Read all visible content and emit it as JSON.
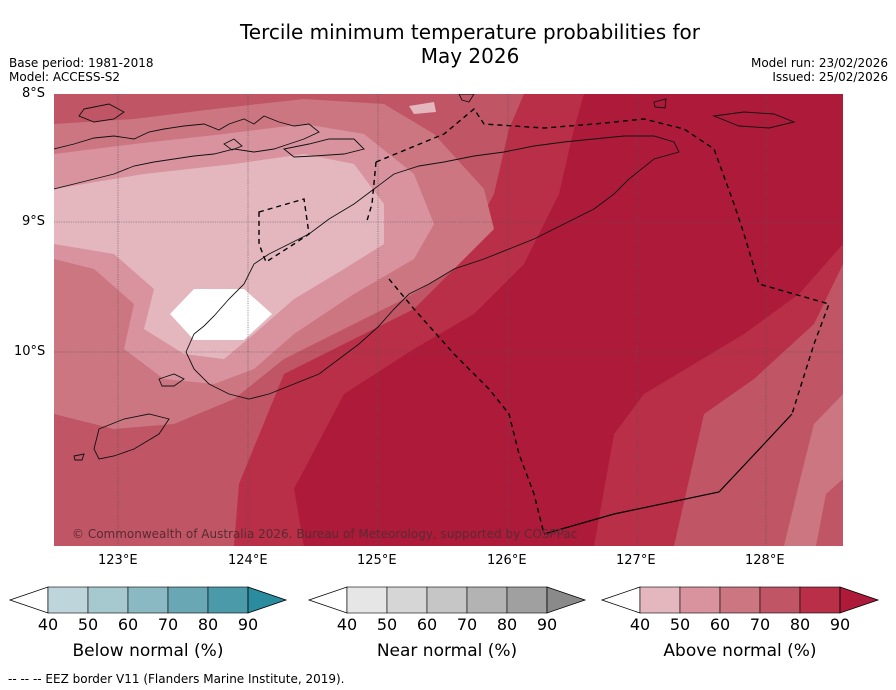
{
  "title": {
    "line1": "Tercile minimum temperature probabilities for",
    "line2": "May 2026"
  },
  "meta": {
    "base_period": "Base period: 1981-2018",
    "model": "Model: ACCESS-S2",
    "model_run": "Model run: 23/02/2026",
    "issued": "Issued: 25/02/2026"
  },
  "map": {
    "lat_labels": [
      "8°S",
      "9°S",
      "10°S"
    ],
    "lon_labels": [
      "123°E",
      "124°E",
      "125°E",
      "126°E",
      "127°E",
      "128°E"
    ],
    "credit": "© Commonwealth of Australia 2026. Bureau of Meteorology, supported by COSPPac"
  },
  "colorbars": [
    {
      "label": "Below normal (%)",
      "ticks": [
        "40",
        "50",
        "60",
        "70",
        "80",
        "90"
      ],
      "colors": [
        "#ffffff",
        "#bdd5db",
        "#a6c8cf",
        "#8bb9c3",
        "#6aa7b5",
        "#4a9aaa",
        "#2a8c9e"
      ]
    },
    {
      "label": "Near normal (%)",
      "ticks": [
        "40",
        "50",
        "60",
        "70",
        "80",
        "90"
      ],
      "colors": [
        "#ffffff",
        "#e6e6e6",
        "#d6d6d6",
        "#c6c6c6",
        "#b3b3b3",
        "#a0a0a0",
        "#8a8a8a"
      ]
    },
    {
      "label": "Above normal (%)",
      "ticks": [
        "40",
        "50",
        "60",
        "70",
        "80",
        "90"
      ],
      "colors": [
        "#ffffff",
        "#e4b7bf",
        "#d8939f",
        "#cc7682",
        "#c05565",
        "#b82f47",
        "#ad1a3a"
      ]
    }
  ],
  "legend": {
    "eez": "--  --  -- EEZ border V11 (Flanders Marine Institute, 2019)."
  },
  "fill_colors": {
    "white": "#ffffff",
    "p40": "#e4b7bf",
    "p50": "#d8939f",
    "p60": "#cc7682",
    "p70": "#c05565",
    "p80": "#b82f47",
    "p90": "#ad1a3a"
  }
}
